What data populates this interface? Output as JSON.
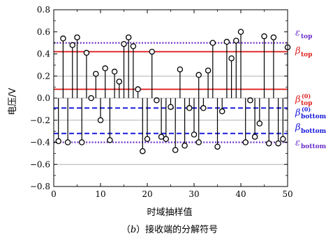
{
  "chart_data": {
    "type": "scatter",
    "style": "stem",
    "xlabel": "时域抽样值",
    "ylabel": "电压/V",
    "caption_parts": [
      "（",
      "b",
      "）接收端的分解符号"
    ],
    "xlim": [
      0,
      50
    ],
    "ylim": [
      -0.8,
      0.8
    ],
    "xticks": [
      "0",
      "10",
      "20",
      "30",
      "40",
      "50"
    ],
    "yticks": [
      "0.8",
      "0.6",
      "0.4",
      "0.2",
      "0.0",
      "−0.2",
      "−0.4",
      "−0.6",
      "−0.8"
    ],
    "ytick_values": [
      0.8,
      0.6,
      0.4,
      0.2,
      0.0,
      -0.2,
      -0.4,
      -0.6,
      -0.8
    ],
    "gridlines_y": [
      0.2,
      0.0,
      -0.2,
      -0.6
    ],
    "top_series": {
      "x": [
        2,
        4,
        5,
        7,
        8,
        9,
        10,
        11,
        13,
        14,
        15,
        16,
        17,
        18,
        21,
        27,
        31,
        33,
        34,
        37,
        38,
        39,
        40,
        45,
        47,
        50
      ],
      "y": [
        0.54,
        0.48,
        0.55,
        0.41,
        0.0,
        0.22,
        -0.2,
        0.27,
        0.24,
        0.15,
        0.49,
        0.55,
        0.47,
        0.08,
        0.42,
        0.26,
        0.21,
        0.25,
        0.5,
        0.51,
        0.36,
        0.52,
        0.6,
        0.56,
        0.55,
        0.46
      ]
    },
    "bottom_series": {
      "x": [
        1,
        3,
        6,
        12,
        19,
        20,
        22,
        23,
        24,
        25,
        26,
        28,
        29,
        30,
        31,
        32,
        35,
        36,
        41,
        42,
        43,
        44,
        46,
        48,
        49
      ],
      "y": [
        -0.39,
        -0.4,
        -0.4,
        -0.38,
        -0.48,
        -0.37,
        -0.02,
        -0.35,
        -0.37,
        -0.08,
        -0.47,
        -0.43,
        -0.09,
        -0.33,
        -0.4,
        -0.09,
        -0.44,
        -0.12,
        -0.4,
        -0.02,
        -0.35,
        -0.23,
        -0.41,
        -0.41,
        -0.37
      ]
    },
    "ref_lines": [
      {
        "y": 0.5,
        "style": "dotted",
        "color": "#6a2fc8",
        "label": "ε",
        "sub": "top",
        "sup": ""
      },
      {
        "y": 0.42,
        "style": "solid",
        "color": "#e02020",
        "label": "β",
        "sub": "top",
        "sup": ""
      },
      {
        "y": 0.08,
        "style": "solid",
        "color": "#e02020",
        "label": "β",
        "sub": "top",
        "sup": "(0)"
      },
      {
        "y": -0.09,
        "style": "dashed",
        "color": "#1a1adc",
        "label": "β",
        "sub": "bottom",
        "sup": "(0)"
      },
      {
        "y": -0.32,
        "style": "dashed",
        "color": "#1a1adc",
        "label": "β",
        "sub": "bottom",
        "sup": ""
      },
      {
        "y": -0.4,
        "style": "dotted",
        "color": "#6a2fc8",
        "label": "ε",
        "sub": "bottom",
        "sup": ""
      }
    ]
  }
}
